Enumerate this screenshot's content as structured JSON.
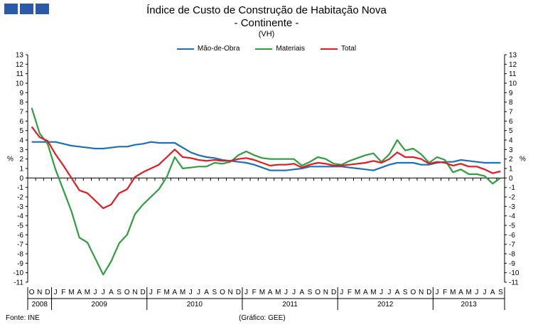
{
  "title_line1": "Índice de Custo de Construção de Habitação Nova",
  "title_line2": "- Continente -",
  "unit": "(VH)",
  "source": "Fonte: INE",
  "credit": "(Gráfico: GEE)",
  "logo_icon": "ine-logo-squares",
  "chart_data": {
    "type": "line",
    "ylim": [
      -11,
      13
    ],
    "ylabel_left": "%",
    "ylabel_right": "%",
    "legend_position": "top-center",
    "grid": false,
    "month_labels": [
      "O",
      "N",
      "D",
      "J",
      "F",
      "M",
      "A",
      "M",
      "J",
      "J",
      "A",
      "S",
      "O",
      "N",
      "D",
      "J",
      "F",
      "M",
      "A",
      "M",
      "J",
      "J",
      "A",
      "S",
      "O",
      "N",
      "D",
      "J",
      "F",
      "M",
      "A",
      "M",
      "J",
      "J",
      "A",
      "S",
      "O",
      "N",
      "D",
      "J",
      "F",
      "M",
      "A",
      "M",
      "J",
      "J",
      "A",
      "S",
      "O",
      "N",
      "D",
      "J",
      "F",
      "M",
      "A",
      "M",
      "J",
      "J",
      "A",
      "S"
    ],
    "years": [
      {
        "label": "2008",
        "start": 0,
        "count": 3
      },
      {
        "label": "2009",
        "start": 3,
        "count": 12
      },
      {
        "label": "2010",
        "start": 15,
        "count": 12
      },
      {
        "label": "2011",
        "start": 27,
        "count": 12
      },
      {
        "label": "2012",
        "start": 39,
        "count": 12
      },
      {
        "label": "2013",
        "start": 51,
        "count": 9
      }
    ],
    "series": [
      {
        "name": "Mão-de-Obra",
        "color": "#1f6fb5",
        "values": [
          3.8,
          3.8,
          3.8,
          3.8,
          3.6,
          3.4,
          3.3,
          3.2,
          3.1,
          3.1,
          3.2,
          3.3,
          3.3,
          3.5,
          3.6,
          3.8,
          3.7,
          3.7,
          3.7,
          3.2,
          2.7,
          2.4,
          2.2,
          2.1,
          1.9,
          1.8,
          1.7,
          1.6,
          1.4,
          1.1,
          0.8,
          0.8,
          0.8,
          0.9,
          1.0,
          1.2,
          1.2,
          1.2,
          1.2,
          1.2,
          1.1,
          1.0,
          0.9,
          0.8,
          1.1,
          1.4,
          1.6,
          1.6,
          1.6,
          1.4,
          1.4,
          1.6,
          1.7,
          1.7,
          1.9,
          1.8,
          1.7,
          1.6,
          1.6,
          1.6
        ]
      },
      {
        "name": "Materiais",
        "color": "#2e9e3e",
        "values": [
          7.4,
          4.7,
          3.6,
          0.9,
          -1.3,
          -3.5,
          -6.3,
          -6.8,
          -8.5,
          -10.2,
          -8.8,
          -6.9,
          -6.0,
          -3.8,
          -2.8,
          -2.0,
          -1.2,
          0.1,
          2.2,
          1.0,
          1.1,
          1.2,
          1.2,
          1.6,
          1.5,
          1.7,
          2.4,
          2.8,
          2.4,
          2.1,
          2.0,
          2.0,
          2.0,
          2.0,
          1.3,
          1.7,
          2.2,
          2.0,
          1.5,
          1.4,
          1.8,
          2.1,
          2.4,
          2.6,
          1.7,
          2.5,
          4.0,
          2.9,
          3.1,
          2.5,
          1.6,
          2.2,
          1.9,
          0.6,
          0.9,
          0.4,
          0.4,
          0.2,
          -0.6,
          0.0
        ]
      },
      {
        "name": "Total",
        "color": "#e11b22",
        "values": [
          5.4,
          4.3,
          3.9,
          2.5,
          1.3,
          0.0,
          -1.3,
          -1.6,
          -2.4,
          -3.2,
          -2.8,
          -1.6,
          -1.2,
          0.1,
          0.6,
          1.0,
          1.4,
          2.2,
          3.0,
          2.2,
          2.1,
          1.9,
          1.8,
          1.9,
          1.8,
          1.8,
          2.0,
          2.1,
          1.9,
          1.6,
          1.3,
          1.4,
          1.4,
          1.5,
          1.1,
          1.4,
          1.6,
          1.5,
          1.3,
          1.3,
          1.4,
          1.5,
          1.6,
          1.8,
          1.6,
          2.0,
          2.7,
          2.2,
          2.2,
          2.0,
          1.5,
          1.7,
          1.6,
          1.3,
          1.5,
          1.2,
          1.2,
          0.9,
          0.5,
          0.7
        ]
      }
    ]
  }
}
